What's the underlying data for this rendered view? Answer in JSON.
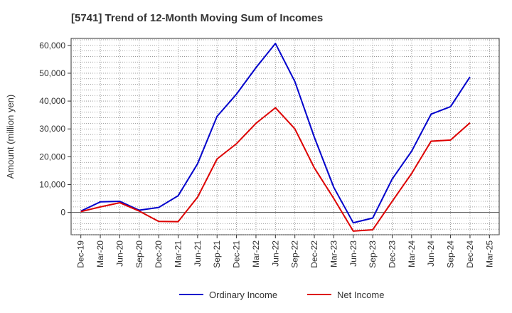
{
  "chart_data": {
    "type": "line",
    "title": "[5741]  Trend of 12-Month Moving Sum of Incomes",
    "xlabel": "",
    "ylabel": "Amount (million yen)",
    "ylim": [
      -8000,
      62500
    ],
    "yticks": [
      0,
      10000,
      20000,
      30000,
      40000,
      50000,
      60000
    ],
    "ytick_labels": [
      "0",
      "10,000",
      "20,000",
      "30,000",
      "40,000",
      "50,000",
      "60,000"
    ],
    "categories": [
      "Dec-19",
      "Mar-20",
      "Jun-20",
      "Sep-20",
      "Dec-20",
      "Mar-21",
      "Jun-21",
      "Sep-21",
      "Dec-21",
      "Mar-22",
      "Jun-22",
      "Sep-22",
      "Dec-22",
      "Mar-23",
      "Jun-23",
      "Sep-23",
      "Dec-23",
      "Mar-24",
      "Jun-24",
      "Sep-24",
      "Dec-24",
      "Mar-25"
    ],
    "grid": true,
    "legend_position": "bottom",
    "series": [
      {
        "name": "Ordinary Income",
        "color": "#0000cc",
        "values": [
          500,
          3800,
          4000,
          800,
          1800,
          6000,
          17500,
          34500,
          42500,
          52000,
          60700,
          47000,
          27000,
          9000,
          -3700,
          -2000,
          12000,
          22000,
          35300,
          38000,
          48700,
          null
        ]
      },
      {
        "name": "Net Income",
        "color": "#dd0000",
        "values": [
          300,
          2000,
          3500,
          500,
          -3200,
          -3300,
          5500,
          19200,
          24700,
          32000,
          37600,
          30000,
          16000,
          5000,
          -6700,
          -6200,
          4000,
          14000,
          25600,
          26000,
          32200,
          null
        ]
      }
    ]
  }
}
